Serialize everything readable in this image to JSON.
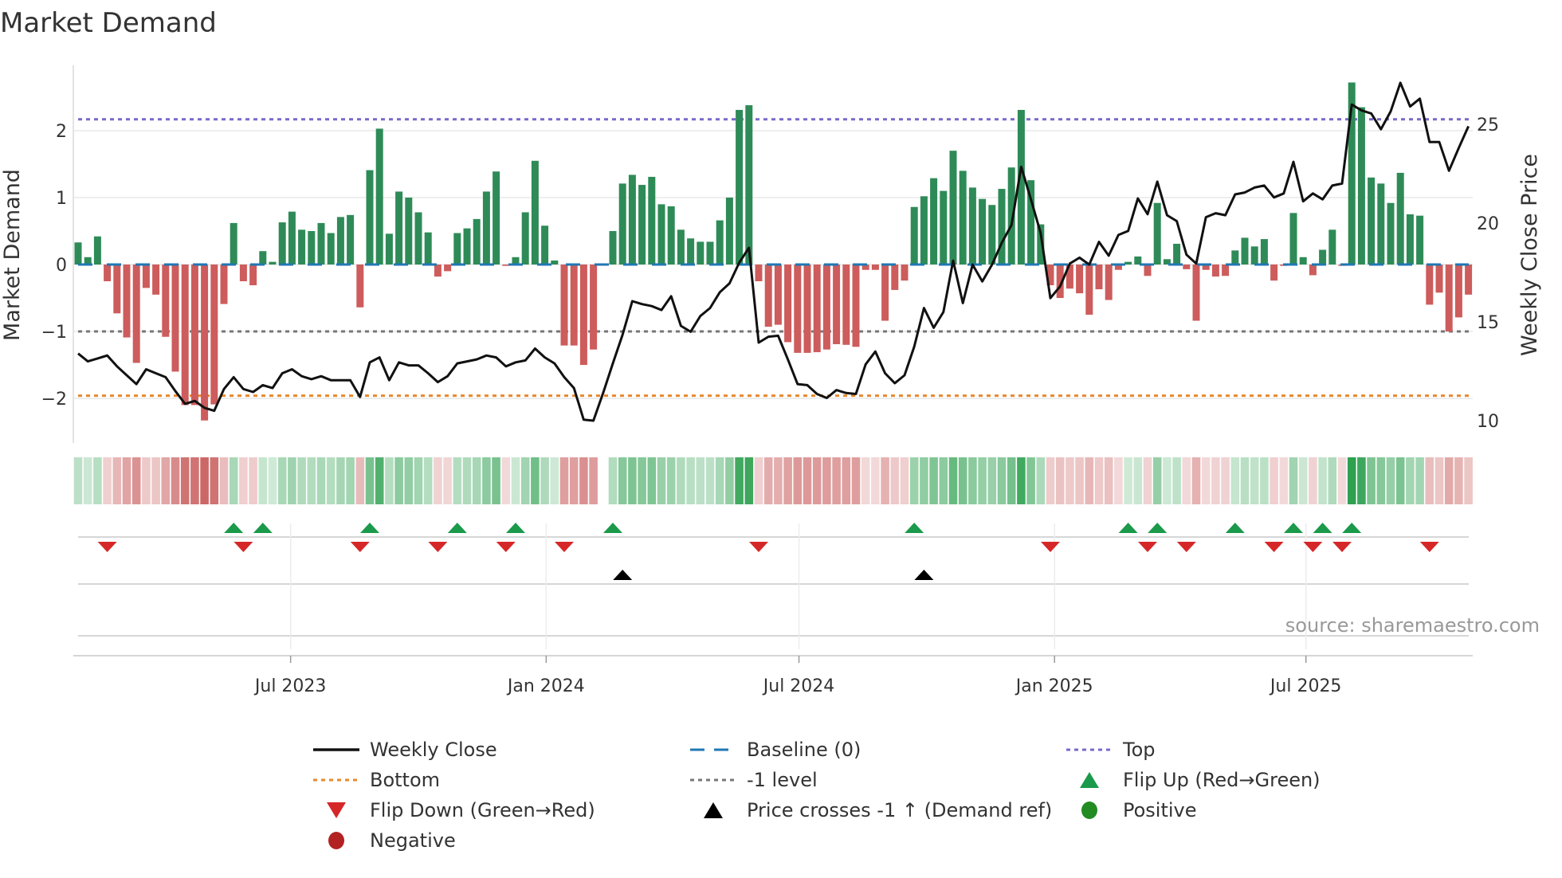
{
  "chart_data": {
    "type": "bar+line",
    "title": "Market Demand",
    "ylabel": "Market Demand",
    "y2label": "Weekly Close Price",
    "source": "source: sharemaestro.com",
    "frequency": "weekly",
    "start_date": "2023-01-29",
    "ylim": [
      -2.67,
      2.98
    ],
    "y2lim": [
      8.87,
      27.98
    ],
    "yticks": [
      {
        "v": -2,
        "label": "−2"
      },
      {
        "v": -1,
        "label": "−1"
      },
      {
        "v": 0,
        "label": "0"
      },
      {
        "v": 1,
        "label": "1"
      },
      {
        "v": 2,
        "label": "2"
      }
    ],
    "y2ticks": [
      {
        "v": 10,
        "label": "10"
      },
      {
        "v": 15,
        "label": "15"
      },
      {
        "v": 20,
        "label": "20"
      },
      {
        "v": 25,
        "label": "25"
      }
    ],
    "xticks": [
      {
        "date": "2023-07-01",
        "label": "Jul 2023"
      },
      {
        "date": "2024-01-01",
        "label": "Jan 2024"
      },
      {
        "date": "2024-07-01",
        "label": "Jul 2024"
      },
      {
        "date": "2025-01-01",
        "label": "Jan 2025"
      },
      {
        "date": "2025-07-01",
        "label": "Jul 2025"
      }
    ],
    "levels": {
      "top": 2.17,
      "bottom": -1.96,
      "minus_one": -1,
      "baseline": 0
    },
    "demand": [
      0.33,
      0.11,
      0.42,
      -0.25,
      -0.73,
      -1.09,
      -1.47,
      -0.35,
      -0.45,
      -1.08,
      -1.6,
      -2.1,
      -2.1,
      -2.33,
      -2.09,
      -0.59,
      0.62,
      -0.25,
      -0.31,
      0.2,
      0.04,
      0.63,
      0.79,
      0.52,
      0.5,
      0.62,
      0.47,
      0.71,
      0.74,
      -0.64,
      1.41,
      2.03,
      0.46,
      1.09,
      1.0,
      0.78,
      0.48,
      -0.18,
      -0.1,
      0.47,
      0.54,
      0.68,
      1.09,
      1.39,
      -0.02,
      0.11,
      0.78,
      1.55,
      0.58,
      0.06,
      -1.21,
      -1.21,
      -1.5,
      -1.27,
      null,
      0.5,
      1.21,
      1.34,
      1.19,
      1.31,
      0.9,
      0.87,
      0.52,
      0.39,
      0.34,
      0.34,
      0.66,
      1.0,
      2.31,
      2.38,
      -0.25,
      -0.93,
      -0.9,
      -1.16,
      -1.32,
      -1.32,
      -1.31,
      -1.27,
      -1.19,
      -1.2,
      -1.23,
      -0.08,
      -0.08,
      -0.84,
      -0.38,
      -0.24,
      0.86,
      1.02,
      1.29,
      1.1,
      1.7,
      1.4,
      1.15,
      0.98,
      0.89,
      1.13,
      1.45,
      2.31,
      1.26,
      0.6,
      -0.31,
      -0.5,
      -0.36,
      -0.43,
      -0.75,
      -0.37,
      -0.53,
      -0.08,
      0.04,
      0.12,
      -0.17,
      0.92,
      0.08,
      0.31,
      -0.07,
      -0.84,
      -0.08,
      -0.18,
      -0.17,
      0.21,
      0.4,
      0.27,
      0.38,
      -0.24,
      -0.02,
      0.77,
      0.11,
      -0.16,
      0.22,
      0.52,
      -0.02,
      2.72,
      2.35,
      1.3,
      1.21,
      0.92,
      1.37,
      0.75,
      0.73,
      -0.6,
      -0.42,
      -1.0,
      -0.79,
      -0.45
    ],
    "weekly_close": [
      13.4,
      13.0,
      13.15,
      13.3,
      12.75,
      12.3,
      11.85,
      12.6,
      12.4,
      12.2,
      11.5,
      10.85,
      11.0,
      10.65,
      10.5,
      11.6,
      12.2,
      11.6,
      11.45,
      11.8,
      11.65,
      12.4,
      12.6,
      12.25,
      12.1,
      12.25,
      12.05,
      12.05,
      12.05,
      11.2,
      12.95,
      13.2,
      12.05,
      12.95,
      12.8,
      12.8,
      12.4,
      11.95,
      12.25,
      12.9,
      13.0,
      13.1,
      13.3,
      13.2,
      12.75,
      12.95,
      13.05,
      13.65,
      13.2,
      12.9,
      12.2,
      11.65,
      10.05,
      10.0,
      11.4,
      12.9,
      14.35,
      16.05,
      15.9,
      15.8,
      15.6,
      16.3,
      14.8,
      14.5,
      15.3,
      15.7,
      16.5,
      16.95,
      18.0,
      18.75,
      13.95,
      14.25,
      14.3,
      13.1,
      11.85,
      11.8,
      11.35,
      11.15,
      11.55,
      11.4,
      11.35,
      12.85,
      13.5,
      12.4,
      11.9,
      12.3,
      13.75,
      15.7,
      14.7,
      15.5,
      18.1,
      15.95,
      17.9,
      17.05,
      17.9,
      19.0,
      19.9,
      22.85,
      21.2,
      19.5,
      16.2,
      16.8,
      17.95,
      18.25,
      17.9,
      19.05,
      18.35,
      19.4,
      19.6,
      21.25,
      20.45,
      22.1,
      20.4,
      20.1,
      18.4,
      17.95,
      20.3,
      20.5,
      20.4,
      21.45,
      21.55,
      21.8,
      21.9,
      21.3,
      21.5,
      23.1,
      21.1,
      21.5,
      21.2,
      21.9,
      22.0,
      26.0,
      25.7,
      25.55,
      24.75,
      25.65,
      27.1,
      25.9,
      26.3,
      24.1,
      24.1,
      22.65,
      23.8,
      24.9
    ],
    "price_cross_up_indices": [
      56,
      87
    ],
    "legend": {
      "placement": "bottom",
      "items": [
        {
          "label": "Weekly Close",
          "kind": "line",
          "color": "#111111"
        },
        {
          "label": "Baseline (0)",
          "kind": "dash",
          "color": "#1f77b4"
        },
        {
          "label": "Top",
          "kind": "dot",
          "color": "#7b68cc"
        },
        {
          "label": "Bottom",
          "kind": "dot",
          "color": "#e8892c"
        },
        {
          "label": "-1 level",
          "kind": "dot",
          "color": "#777777"
        },
        {
          "label": "Flip Up (Red→Green)",
          "kind": "tri-up",
          "color": "#1a9a4a"
        },
        {
          "label": "Flip Down (Green→Red)",
          "kind": "tri-down",
          "color": "#d62728"
        },
        {
          "label": "Price crosses -1 ↑ (Demand ref)",
          "kind": "tri-up",
          "color": "#000000"
        },
        {
          "label": "Positive",
          "kind": "dot-marker",
          "color": "#228b22"
        },
        {
          "label": "Negative",
          "kind": "dot-marker",
          "color": "#b22222"
        }
      ]
    },
    "colors": {
      "positive_bar": "#2e8b57",
      "negative_bar": "#cd5c5c",
      "heat_pos": "46,160,80",
      "heat_neg": "200,90,90"
    }
  }
}
